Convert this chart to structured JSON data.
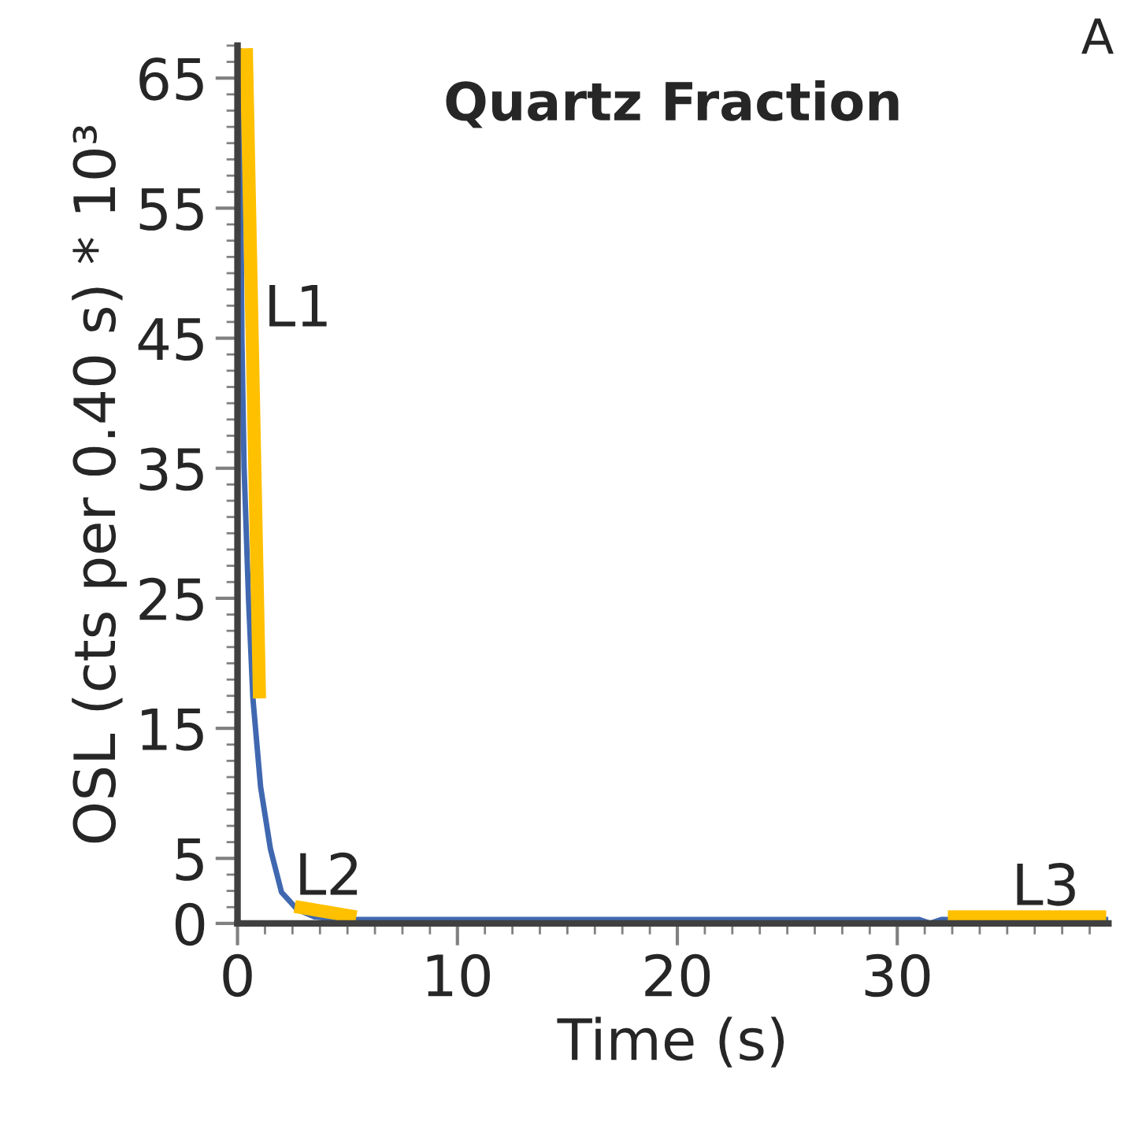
{
  "chart_data": {
    "type": "line",
    "title": "Quartz Fraction",
    "xlabel": "Time (s)",
    "ylabel": "OSL (cts per 0.40 s) * 10³",
    "xlim": [
      0,
      39.6
    ],
    "ylim": [
      0,
      67.5
    ],
    "xticks": [
      0,
      10,
      20,
      30
    ],
    "yticks": [
      0,
      5,
      15,
      25,
      35,
      45,
      55,
      65
    ],
    "grid": false,
    "legend": false,
    "series": [
      {
        "color": "#4068b0",
        "x": [
          0.1,
          0.2,
          0.3,
          0.5,
          0.7,
          1.05,
          1.5,
          2.0,
          2.7,
          3.5,
          4.7,
          10,
          20,
          31,
          31.5,
          32,
          39.6
        ],
        "values": [
          67.3,
          45,
          35,
          25,
          17.3,
          10.5,
          5.7,
          2.4,
          1.1,
          0.5,
          0.3,
          0.3,
          0.3,
          0.3,
          0.0,
          0.3,
          0.3
        ]
      },
      {
        "color": "#ffc000",
        "x": [
          0.4,
          1.0
        ],
        "values": [
          67.3,
          17.3
        ]
      },
      {
        "color": "#ffc000",
        "x": [
          2.6,
          5.4
        ],
        "values": [
          1.3,
          0.5
        ]
      },
      {
        "color": "#ffc000",
        "x": [
          32.3,
          39.5
        ],
        "values": [
          0.5,
          0.5
        ]
      }
    ],
    "annotations": [
      {
        "text": "L1",
        "x": 1.2,
        "y": 45
      },
      {
        "text": "L2",
        "x": 2.6,
        "y": 1.3
      },
      {
        "text": "L3",
        "x": 35.2,
        "y": 0.5
      },
      "A"
    ]
  }
}
